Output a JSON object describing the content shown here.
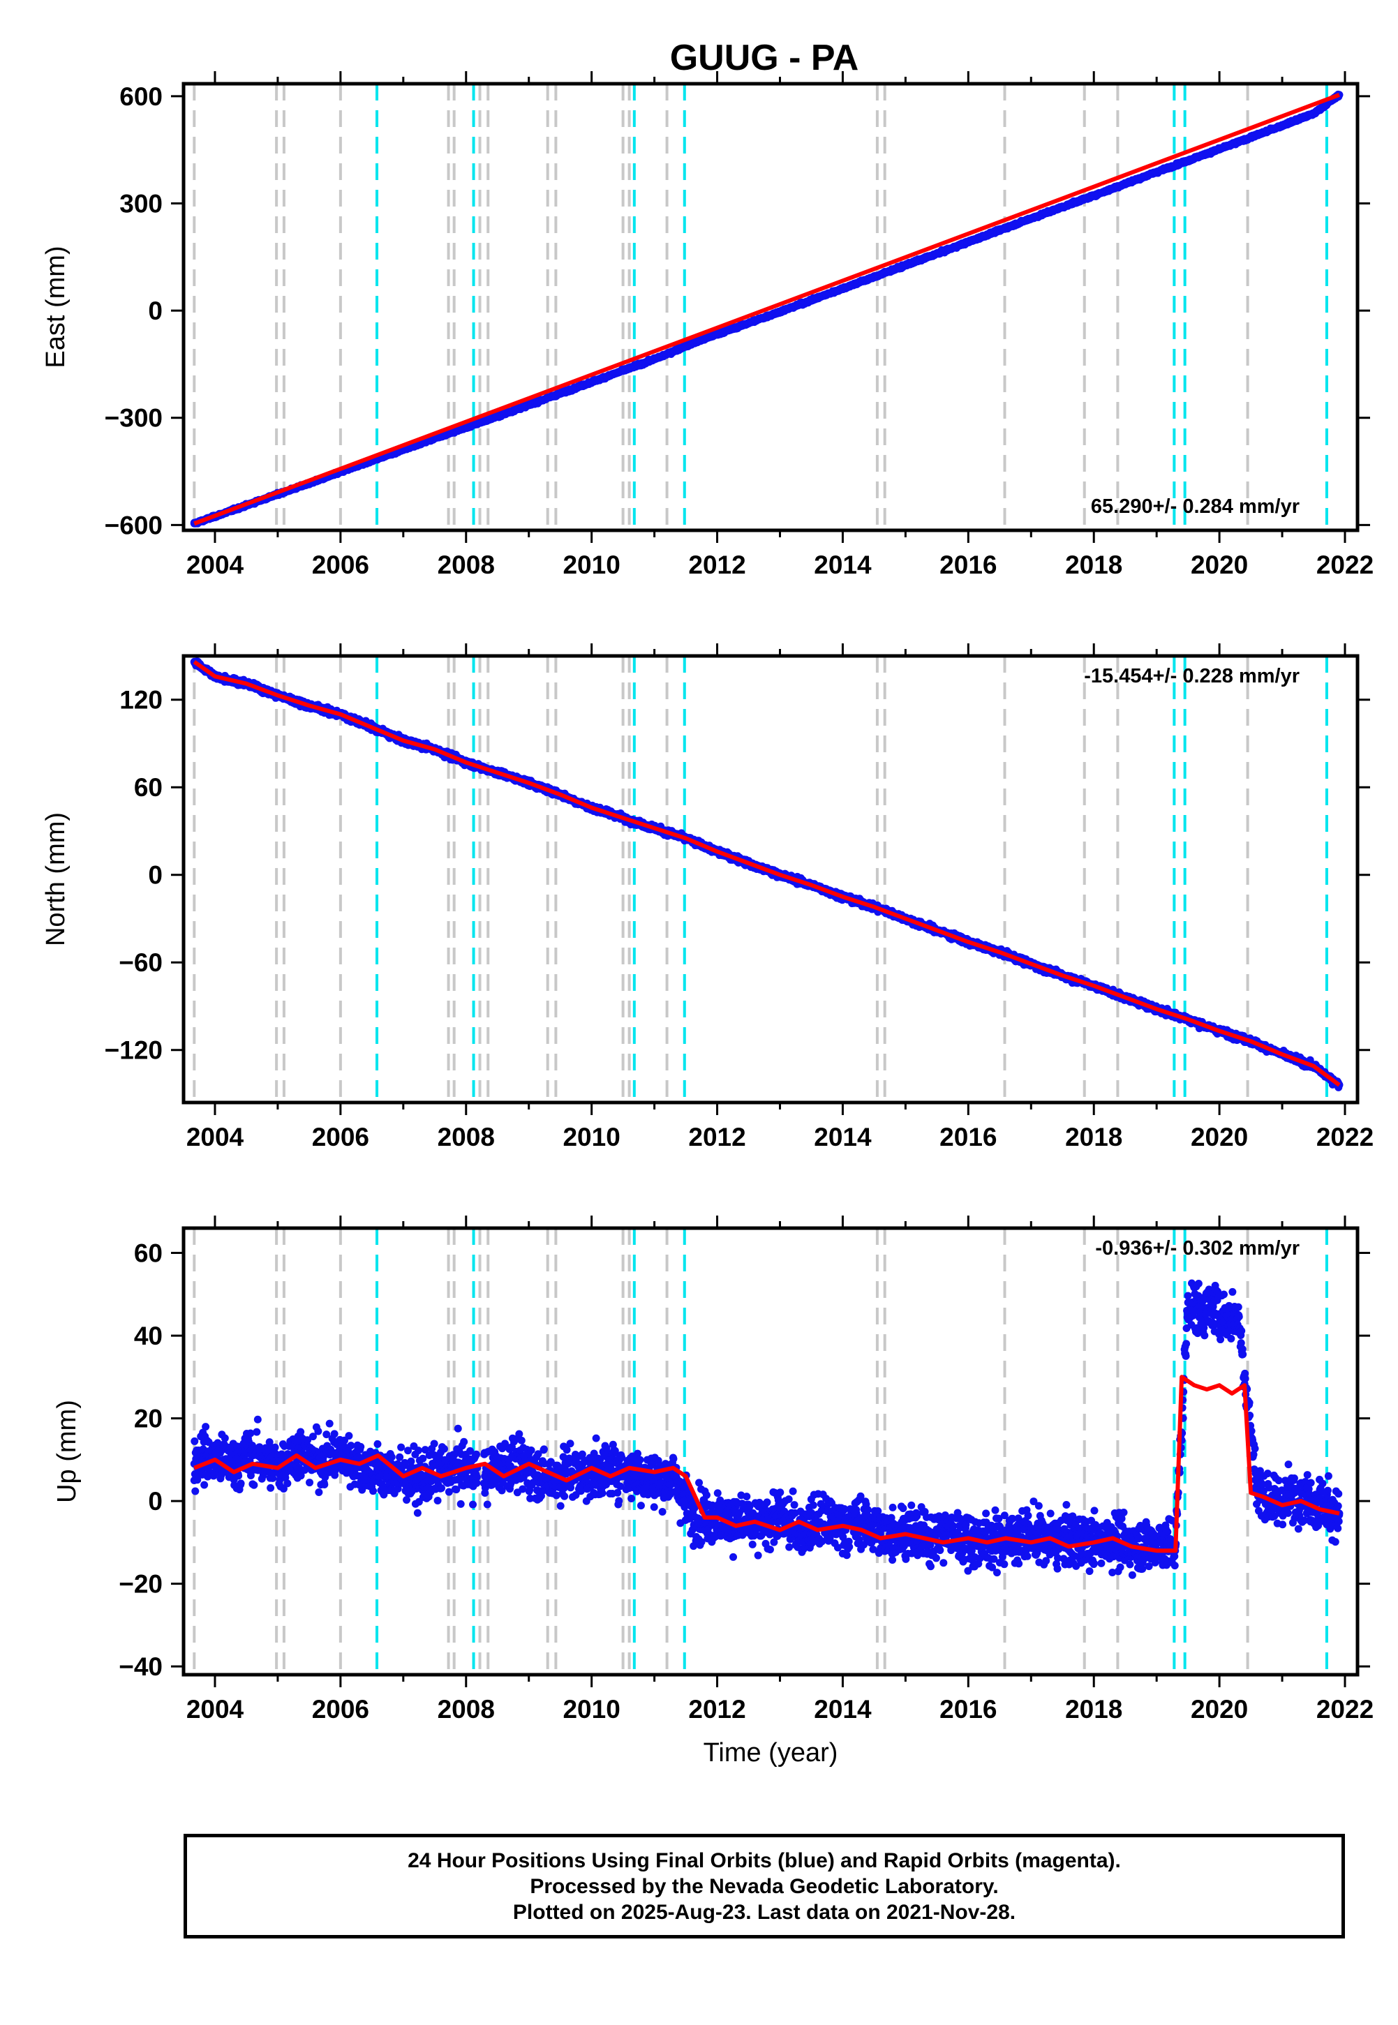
{
  "title": "GUUG - PA",
  "colors": {
    "final_points": "#1010f0",
    "model": "#ff0000",
    "event_equipment": "#c8c8c8",
    "event_earthquake": "#00e5ee",
    "frame": "#000000"
  },
  "chart_data": [
    {
      "type": "scatter",
      "component": "East",
      "ylabel": "East (mm)",
      "xlabel": "",
      "xlim": [
        2003.5,
        2022.2
      ],
      "ylim": [
        -615,
        635
      ],
      "yticks": [
        600,
        300,
        0,
        -300,
        -600
      ],
      "xticks": [
        2004,
        2006,
        2008,
        2010,
        2012,
        2014,
        2016,
        2018,
        2020,
        2022
      ],
      "rate_label": "65.290+/- 0.284 mm/yr",
      "series": [
        {
          "label": "daily positions",
          "marker": "dot",
          "x": [
            2003.67,
            2004.0,
            2004.5,
            2005.0,
            2005.5,
            2006.0,
            2006.5,
            2007.0,
            2007.5,
            2008.0,
            2008.5,
            2009.0,
            2009.5,
            2010.0,
            2010.5,
            2011.0,
            2011.25,
            2011.5,
            2012.0,
            2012.5,
            2013.0,
            2013.5,
            2014.0,
            2014.5,
            2015.0,
            2015.5,
            2016.0,
            2016.5,
            2017.0,
            2017.5,
            2018.0,
            2018.5,
            2019.0,
            2019.5,
            2020.0,
            2020.5,
            2021.0,
            2021.5,
            2021.91
          ],
          "y": [
            -596,
            -576,
            -545,
            -514,
            -484,
            -452,
            -420,
            -389,
            -357,
            -327,
            -296,
            -264,
            -232,
            -200,
            -168,
            -136,
            -118,
            -99,
            -66,
            -35,
            -3,
            29,
            62,
            94,
            127,
            159,
            192,
            225,
            258,
            290,
            322,
            355,
            388,
            420,
            452,
            485,
            518,
            551,
            604
          ]
        },
        {
          "label": "model",
          "line": true,
          "x": [
            2003.67,
            2021.91
          ],
          "y": [
            -596,
            604
          ]
        }
      ]
    },
    {
      "type": "scatter",
      "component": "North",
      "ylabel": "North (mm)",
      "xlabel": "",
      "xlim": [
        2003.5,
        2022.2
      ],
      "ylim": [
        -156,
        150
      ],
      "yticks": [
        120,
        60,
        0,
        -60,
        -120
      ],
      "xticks": [
        2004,
        2006,
        2008,
        2010,
        2012,
        2014,
        2016,
        2018,
        2020,
        2022
      ],
      "rate_label": "-15.454+/- 0.228 mm/yr",
      "series": [
        {
          "label": "daily positions",
          "marker": "dot",
          "x": [
            2003.67,
            2004.0,
            2004.5,
            2005.0,
            2005.5,
            2006.0,
            2006.5,
            2007.0,
            2007.5,
            2008.0,
            2008.5,
            2009.0,
            2009.5,
            2010.0,
            2010.5,
            2011.0,
            2011.5,
            2012.0,
            2012.5,
            2013.0,
            2013.5,
            2014.0,
            2014.5,
            2015.0,
            2015.5,
            2016.0,
            2016.5,
            2017.0,
            2017.5,
            2018.0,
            2018.5,
            2019.0,
            2019.5,
            2020.0,
            2020.5,
            2021.0,
            2021.5,
            2021.91
          ],
          "y": [
            146,
            136,
            131,
            123,
            116,
            110,
            101,
            92,
            86,
            77,
            70,
            63,
            55,
            46,
            39,
            32,
            25,
            16,
            8,
            0,
            -7,
            -15,
            -22,
            -30,
            -38,
            -46,
            -53,
            -61,
            -69,
            -76,
            -84,
            -92,
            -99,
            -107,
            -114,
            -123,
            -131,
            -144
          ]
        },
        {
          "label": "model",
          "line": true,
          "x": [
            2003.67,
            2004.0,
            2004.5,
            2005.0,
            2005.5,
            2006.0,
            2006.5,
            2007.0,
            2007.5,
            2008.0,
            2008.5,
            2009.0,
            2009.5,
            2010.0,
            2010.5,
            2011.0,
            2011.5,
            2012.0,
            2012.5,
            2013.0,
            2013.5,
            2014.0,
            2014.5,
            2015.0,
            2015.5,
            2016.0,
            2016.5,
            2017.0,
            2017.5,
            2018.0,
            2018.5,
            2019.0,
            2019.5,
            2020.0,
            2020.5,
            2021.0,
            2021.5,
            2021.91
          ],
          "y": [
            146,
            136,
            131,
            123,
            116,
            110,
            101,
            92,
            86,
            77,
            70,
            63,
            55,
            46,
            39,
            32,
            25,
            16,
            8,
            0,
            -7,
            -15,
            -22,
            -30,
            -38,
            -46,
            -53,
            -61,
            -69,
            -76,
            -84,
            -92,
            -99,
            -107,
            -114,
            -123,
            -131,
            -144
          ]
        }
      ]
    },
    {
      "type": "scatter",
      "component": "Up",
      "ylabel": "Up (mm)",
      "xlabel": "Time (year)",
      "xlim": [
        2003.5,
        2022.2
      ],
      "ylim": [
        -42,
        66
      ],
      "yticks": [
        60,
        40,
        20,
        0,
        -20,
        -40
      ],
      "xticks": [
        2004,
        2006,
        2008,
        2010,
        2012,
        2014,
        2016,
        2018,
        2020,
        2022
      ],
      "rate_label": "-0.936+/- 0.302 mm/yr",
      "series": [
        {
          "label": "daily positions",
          "marker": "dot",
          "x": [
            2003.67,
            2003.8,
            2004.0,
            2004.3,
            2004.6,
            2005.0,
            2005.3,
            2005.6,
            2006.0,
            2006.3,
            2006.6,
            2007.0,
            2007.3,
            2007.6,
            2008.0,
            2008.3,
            2008.6,
            2009.0,
            2009.3,
            2009.6,
            2010.0,
            2010.3,
            2010.6,
            2011.0,
            2011.3,
            2011.6,
            2012.0,
            2012.3,
            2012.6,
            2013.0,
            2013.3,
            2013.6,
            2014.0,
            2014.3,
            2014.6,
            2015.0,
            2015.3,
            2015.6,
            2016.0,
            2016.3,
            2016.6,
            2017.0,
            2017.3,
            2017.6,
            2018.0,
            2018.3,
            2018.6,
            2019.0,
            2019.3,
            2019.5,
            2019.7,
            2019.9,
            2020.1,
            2020.3,
            2020.6,
            2020.9,
            2021.2,
            2021.5,
            2021.91
          ],
          "y": [
            9,
            11,
            10,
            9,
            11,
            8,
            12,
            10,
            11,
            9,
            7,
            6,
            5,
            7,
            8,
            6,
            9,
            8,
            5,
            7,
            6,
            8,
            7,
            5,
            6,
            -3,
            -4,
            -5,
            -6,
            -4,
            -7,
            -5,
            -6,
            -5,
            -8,
            -7,
            -9,
            -8,
            -9,
            -10,
            -9,
            -8,
            -10,
            -9,
            -10,
            -9,
            -11,
            -10,
            -11,
            48,
            46,
            47,
            44,
            45,
            3,
            -1,
            2,
            0,
            -3
          ]
        },
        {
          "label": "model",
          "line": true,
          "x": [
            2003.67,
            2004.0,
            2004.3,
            2004.6,
            2005.0,
            2005.3,
            2005.6,
            2006.0,
            2006.3,
            2006.6,
            2007.0,
            2007.3,
            2007.6,
            2008.0,
            2008.3,
            2008.6,
            2009.0,
            2009.3,
            2009.6,
            2010.0,
            2010.3,
            2010.6,
            2011.0,
            2011.3,
            2011.5,
            2011.8,
            2012.0,
            2012.3,
            2012.6,
            2013.0,
            2013.3,
            2013.6,
            2014.0,
            2014.3,
            2014.6,
            2015.0,
            2015.3,
            2015.6,
            2016.0,
            2016.3,
            2016.6,
            2017.0,
            2017.3,
            2017.6,
            2018.0,
            2018.3,
            2018.6,
            2019.0,
            2019.3,
            2019.4,
            2019.6,
            2019.8,
            2020.0,
            2020.2,
            2020.4,
            2020.5,
            2020.7,
            2021.0,
            2021.3,
            2021.6,
            2021.91
          ],
          "y": [
            8,
            10,
            7,
            9,
            8,
            11,
            8,
            10,
            9,
            11,
            6,
            8,
            6,
            8,
            9,
            6,
            9,
            7,
            5,
            8,
            6,
            8,
            7,
            8,
            6,
            -4,
            -4,
            -6,
            -5,
            -7,
            -5,
            -7,
            -6,
            -7,
            -9,
            -8,
            -9,
            -10,
            -9,
            -10,
            -9,
            -10,
            -9,
            -11,
            -10,
            -9,
            -11,
            -12,
            -12,
            30,
            28,
            27,
            28,
            26,
            28,
            2,
            1,
            -1,
            0,
            -2,
            -3
          ]
        }
      ]
    }
  ],
  "events": {
    "equipment": [
      2003.67,
      2004.98,
      2005.1,
      2006.0,
      2007.72,
      2007.81,
      2008.22,
      2008.35,
      2009.3,
      2009.43,
      2010.5,
      2010.6,
      2011.2,
      2014.55,
      2014.67,
      2016.58,
      2017.85,
      2018.38,
      2020.45
    ],
    "earthquake": [
      2006.58,
      2008.12,
      2010.68,
      2011.48,
      2019.28,
      2019.45,
      2021.71
    ]
  },
  "footer": {
    "line1": "24 Hour Positions Using Final Orbits (blue) and Rapid Orbits (magenta).",
    "line2": "Processed by the Nevada Geodetic Laboratory.",
    "line3": "Plotted on 2025-Aug-23. Last data on 2021-Nov-28."
  }
}
